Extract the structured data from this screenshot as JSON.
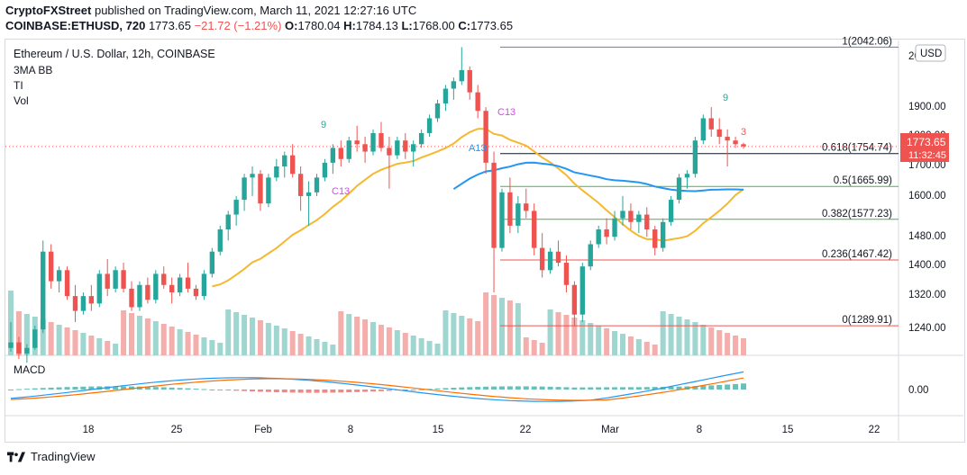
{
  "header": {
    "publisher_line": "CryptoFXStreet published on TradingView.com, March 11, 2021 12:27:16 UTC",
    "publisher": "CryptoFXStreet",
    "symbol": "COINBASE:ETHUSD, 720",
    "last": "1773.65",
    "change": "−21.72 (−1.21%)",
    "o_label": "O:",
    "o": "1780.04",
    "h_label": "H:",
    "h": "1784.13",
    "l_label": "L:",
    "l": "1768.00",
    "c_label": "C:",
    "c": "1773.65"
  },
  "legend": {
    "title": "Ethereum / U.S. Dollar, 12h, COINBASE",
    "ind1": "3MA BB",
    "ind2": "TI",
    "ind3": "Vol",
    "macd": "MACD"
  },
  "price_axis": {
    "currency": "USD",
    "ticks": [
      "2000.00",
      "1900.00",
      "1800.00",
      "1700.00",
      "1600.00",
      "1480.00",
      "1400.00",
      "1320.00",
      "1240.00"
    ],
    "current_price": "1773.65",
    "countdown": "11:32:45",
    "macd_tick": "0.00"
  },
  "time_axis": {
    "ticks": [
      "18",
      "25",
      "Feb",
      "8",
      "15",
      "22",
      "Mar",
      "8",
      "15",
      "22"
    ]
  },
  "colors": {
    "up": "#26a69a",
    "down": "#ef5350",
    "ma_slow": "#f5b82e",
    "ma_fast": "#2196f3",
    "macd": "#2196f3",
    "signal": "#ff6d00"
  },
  "chart_data": {
    "type": "candlestick",
    "symbol": "ETHUSD",
    "interval": "12h",
    "y_range": [
      1210,
      2060
    ],
    "fibonacci": [
      {
        "level": "1",
        "price": 2042.06,
        "label": "1(2042.06)"
      },
      {
        "level": "0.618",
        "price": 1754.74,
        "label": "0.618(1754.74)"
      },
      {
        "level": "0.5",
        "price": 1665.99,
        "label": "0.5(1665.99)"
      },
      {
        "level": "0.382",
        "price": 1577.23,
        "label": "0.382(1577.23)"
      },
      {
        "level": "0.236",
        "price": 1467.42,
        "label": "0.236(1467.42)"
      },
      {
        "level": "0",
        "price": 1289.91,
        "label": "0(1289.91)"
      }
    ],
    "annotations": [
      "9",
      "C13",
      "A13",
      "C13",
      "9",
      "3"
    ],
    "candles": [
      [
        1230,
        1300,
        1220,
        1245
      ],
      [
        1245,
        1260,
        1200,
        1215
      ],
      [
        1215,
        1240,
        1190,
        1230
      ],
      [
        1230,
        1290,
        1225,
        1280
      ],
      [
        1280,
        1520,
        1270,
        1490
      ],
      [
        1490,
        1510,
        1390,
        1410
      ],
      [
        1410,
        1450,
        1380,
        1440
      ],
      [
        1440,
        1450,
        1360,
        1370
      ],
      [
        1370,
        1400,
        1300,
        1330
      ],
      [
        1330,
        1380,
        1320,
        1370
      ],
      [
        1370,
        1400,
        1330,
        1350
      ],
      [
        1350,
        1440,
        1340,
        1430
      ],
      [
        1430,
        1470,
        1370,
        1390
      ],
      [
        1390,
        1450,
        1380,
        1440
      ],
      [
        1440,
        1460,
        1380,
        1390
      ],
      [
        1390,
        1410,
        1330,
        1340
      ],
      [
        1340,
        1410,
        1330,
        1400
      ],
      [
        1400,
        1420,
        1350,
        1360
      ],
      [
        1360,
        1440,
        1350,
        1430
      ],
      [
        1430,
        1450,
        1390,
        1400
      ],
      [
        1400,
        1420,
        1350,
        1380
      ],
      [
        1380,
        1430,
        1370,
        1420
      ],
      [
        1420,
        1460,
        1380,
        1390
      ],
      [
        1390,
        1400,
        1360,
        1370
      ],
      [
        1370,
        1440,
        1360,
        1430
      ],
      [
        1430,
        1500,
        1420,
        1490
      ],
      [
        1490,
        1560,
        1480,
        1550
      ],
      [
        1550,
        1600,
        1520,
        1590
      ],
      [
        1590,
        1640,
        1560,
        1630
      ],
      [
        1630,
        1700,
        1600,
        1690
      ],
      [
        1690,
        1720,
        1640,
        1700
      ],
      [
        1700,
        1710,
        1600,
        1620
      ],
      [
        1620,
        1700,
        1610,
        1690
      ],
      [
        1690,
        1740,
        1680,
        1720
      ],
      [
        1720,
        1760,
        1690,
        1750
      ],
      [
        1750,
        1780,
        1690,
        1700
      ],
      [
        1700,
        1720,
        1600,
        1640
      ],
      [
        1640,
        1680,
        1560,
        1650
      ],
      [
        1650,
        1700,
        1640,
        1690
      ],
      [
        1690,
        1740,
        1680,
        1730
      ],
      [
        1730,
        1780,
        1700,
        1770
      ],
      [
        1770,
        1790,
        1720,
        1740
      ],
      [
        1740,
        1800,
        1730,
        1790
      ],
      [
        1790,
        1830,
        1760,
        1780
      ],
      [
        1780,
        1800,
        1730,
        1760
      ],
      [
        1760,
        1820,
        1750,
        1810
      ],
      [
        1810,
        1840,
        1760,
        1770
      ],
      [
        1770,
        1800,
        1660,
        1750
      ],
      [
        1750,
        1800,
        1740,
        1790
      ],
      [
        1790,
        1810,
        1740,
        1760
      ],
      [
        1760,
        1790,
        1720,
        1780
      ],
      [
        1780,
        1820,
        1770,
        1810
      ],
      [
        1810,
        1860,
        1800,
        1850
      ],
      [
        1850,
        1900,
        1840,
        1890
      ],
      [
        1890,
        1940,
        1870,
        1930
      ],
      [
        1930,
        1960,
        1900,
        1950
      ],
      [
        1950,
        2042,
        1940,
        1980
      ],
      [
        1980,
        1990,
        1900,
        1920
      ],
      [
        1920,
        1940,
        1850,
        1870
      ],
      [
        1870,
        1880,
        1700,
        1730
      ],
      [
        1730,
        1760,
        1380,
        1500
      ],
      [
        1500,
        1660,
        1490,
        1650
      ],
      [
        1650,
        1690,
        1540,
        1560
      ],
      [
        1560,
        1640,
        1540,
        1620
      ],
      [
        1620,
        1660,
        1580,
        1600
      ],
      [
        1600,
        1620,
        1480,
        1500
      ],
      [
        1500,
        1540,
        1420,
        1440
      ],
      [
        1440,
        1500,
        1430,
        1490
      ],
      [
        1490,
        1520,
        1450,
        1460
      ],
      [
        1460,
        1480,
        1380,
        1400
      ],
      [
        1400,
        1410,
        1290,
        1320
      ],
      [
        1320,
        1460,
        1300,
        1450
      ],
      [
        1450,
        1520,
        1440,
        1510
      ],
      [
        1510,
        1560,
        1500,
        1550
      ],
      [
        1550,
        1580,
        1510,
        1530
      ],
      [
        1530,
        1600,
        1520,
        1580
      ],
      [
        1580,
        1640,
        1560,
        1600
      ],
      [
        1600,
        1620,
        1550,
        1570
      ],
      [
        1570,
        1600,
        1540,
        1590
      ],
      [
        1590,
        1610,
        1530,
        1550
      ],
      [
        1550,
        1560,
        1480,
        1500
      ],
      [
        1500,
        1580,
        1490,
        1570
      ],
      [
        1570,
        1640,
        1560,
        1630
      ],
      [
        1630,
        1700,
        1620,
        1690
      ],
      [
        1690,
        1710,
        1660,
        1700
      ],
      [
        1700,
        1800,
        1690,
        1790
      ],
      [
        1790,
        1860,
        1780,
        1850
      ],
      [
        1850,
        1880,
        1800,
        1820
      ],
      [
        1820,
        1850,
        1780,
        1800
      ],
      [
        1800,
        1820,
        1720,
        1790
      ],
      [
        1790,
        1800,
        1770,
        1780
      ],
      [
        1780,
        1784,
        1768,
        1774
      ]
    ]
  }
}
